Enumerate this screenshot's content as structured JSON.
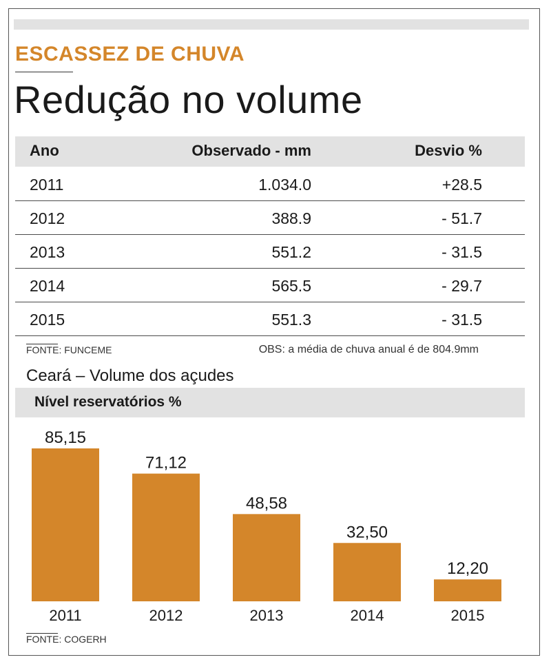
{
  "kicker": "ESCASSEZ DE CHUVA",
  "headline": "Redução no volume",
  "table": {
    "headers": [
      "Ano",
      "Observado - mm",
      "Desvio %"
    ],
    "rows": [
      {
        "ano": "2011",
        "observado": "1.034.0",
        "desvio": "+28.5"
      },
      {
        "ano": "2012",
        "observado": "388.9",
        "desvio": "- 51.7"
      },
      {
        "ano": "2013",
        "observado": "551.2",
        "desvio": "- 31.5"
      },
      {
        "ano": "2014",
        "observado": "565.5",
        "desvio": "- 29.7"
      },
      {
        "ano": "2015",
        "observado": "551.3",
        "desvio": "- 31.5"
      }
    ],
    "source": "FONTE: FUNCEME",
    "note": "OBS: a média de chuva anual é de 804.9mm"
  },
  "chart_section": {
    "subtitle": "Ceará – Volume dos açudes",
    "title": "Nível reservatórios %",
    "source": "FONTE: COGERH"
  },
  "chart_data": {
    "type": "bar",
    "title": "Nível reservatórios %",
    "categories": [
      "2011",
      "2012",
      "2013",
      "2014",
      "2015"
    ],
    "values": [
      85.15,
      71.12,
      48.58,
      32.5,
      12.2
    ],
    "value_labels": [
      "85,15",
      "71,12",
      "48,58",
      "32,50",
      "12,20"
    ],
    "ylim": [
      0,
      85.15
    ],
    "grid": false,
    "bar_color": "#d4862a"
  },
  "colors": {
    "accent": "#d4862a",
    "band": "#e2e2e2"
  }
}
